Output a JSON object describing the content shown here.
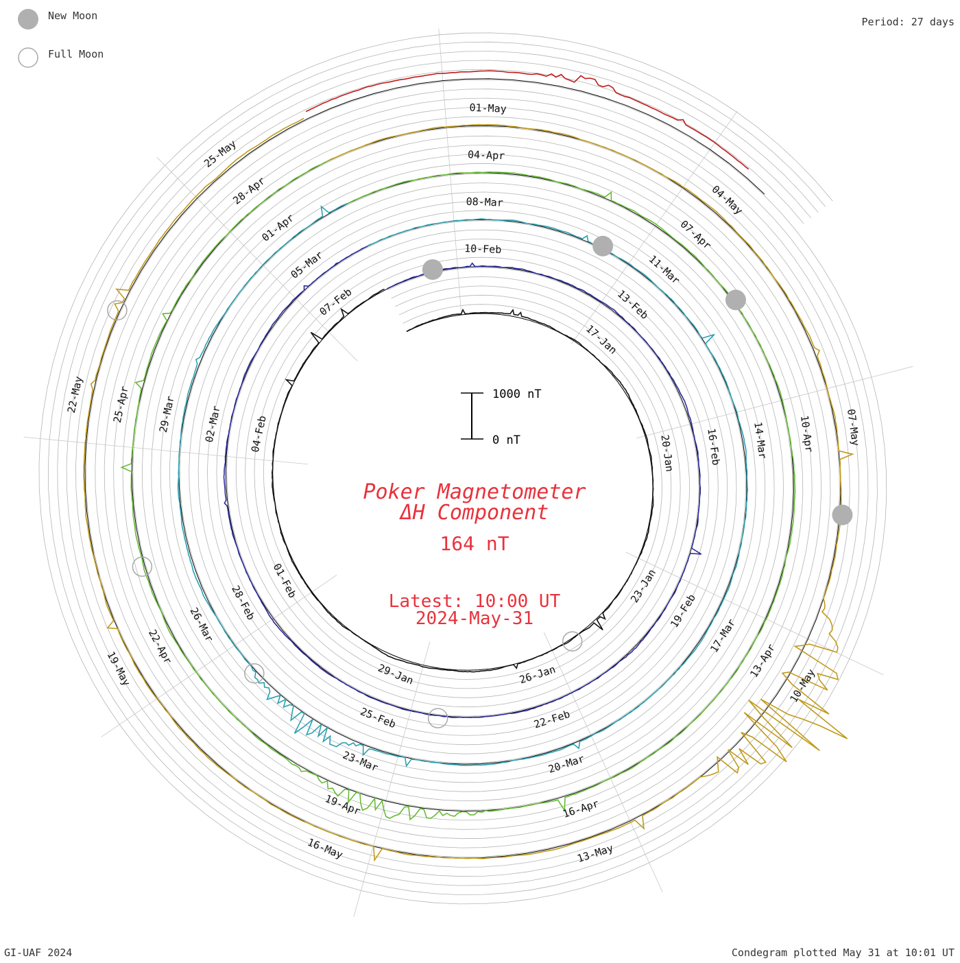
{
  "legend": {
    "new_moon_label": "New Moon",
    "full_moon_label": "Full Moon"
  },
  "period_label": "Period: 27 days",
  "footer": {
    "left": "GI-UAF 2024",
    "right": "Condegram plotted May 31 at 10:01 UT"
  },
  "center": {
    "title_line1": "Poker Magnetometer",
    "title_line2": "ΔH Component",
    "value": "164 nT",
    "latest_line1": "Latest: 10:00 UT",
    "latest_line2": "2024-May-31",
    "scale_top": "1000 nT",
    "scale_bottom": "0 nT"
  },
  "colors": {
    "title": "#e8323c",
    "grid": "#b4b4b4",
    "moon_fill": "#b0b0b0",
    "moon_stroke": "#a8a8a8"
  },
  "chart_data": {
    "type": "line",
    "subtype": "condegram spiral (27-day period)",
    "period_days": 27,
    "scale_nT": [
      0,
      1000
    ],
    "date_labels": [
      "17-Jan",
      "20-Jan",
      "23-Jan",
      "26-Jan",
      "29-Jan",
      "01-Feb",
      "04-Feb",
      "07-Feb",
      "10-Feb",
      "13-Feb",
      "16-Feb",
      "19-Feb",
      "22-Feb",
      "25-Feb",
      "28-Feb",
      "02-Mar",
      "05-Mar",
      "08-Mar",
      "11-Mar",
      "14-Mar",
      "17-Mar",
      "20-Mar",
      "23-Mar",
      "26-Mar",
      "29-Mar",
      "01-Apr",
      "04-Apr",
      "07-Apr",
      "10-Apr",
      "13-Apr",
      "16-Apr",
      "19-Apr",
      "22-Apr",
      "25-Apr",
      "28-Apr",
      "01-May",
      "04-May",
      "07-May",
      "10-May",
      "13-May",
      "16-May",
      "19-May",
      "22-May",
      "25-May"
    ],
    "series": [
      {
        "start": "2024-01-12",
        "end": "2024-02-08",
        "color": "#141414",
        "baseline_nT": 0,
        "disturbance": "quiet"
      },
      {
        "start": "2024-02-08",
        "end": "2024-03-06",
        "color": "#2a2a9a",
        "baseline_nT": 0,
        "disturbance": "quiet"
      },
      {
        "start": "2024-03-06",
        "end": "2024-04-02",
        "color": "#2aa0b0",
        "baseline_nT": 0,
        "disturbance": "moderate (storm ~24-Mar)"
      },
      {
        "start": "2024-04-02",
        "end": "2024-04-29",
        "color": "#66bb33",
        "baseline_nT": 0,
        "disturbance": "moderate (storm ~19-Apr)"
      },
      {
        "start": "2024-04-29",
        "end": "2024-05-26",
        "color": "#c09a1a",
        "baseline_nT": 0,
        "disturbance": "extreme (storm 10/11-May)"
      },
      {
        "start": "2024-05-26",
        "end": "2024-05-31",
        "color": "#c01a1a",
        "baseline_nT": 164,
        "disturbance": "moderate"
      }
    ],
    "new_moons": [
      "2024-02-09",
      "2024-03-10",
      "2024-04-08",
      "2024-05-08"
    ],
    "full_moons": [
      "2024-01-25",
      "2024-02-24",
      "2024-03-25",
      "2024-04-23",
      "2024-05-23"
    ],
    "latest_value_nT": 164
  }
}
